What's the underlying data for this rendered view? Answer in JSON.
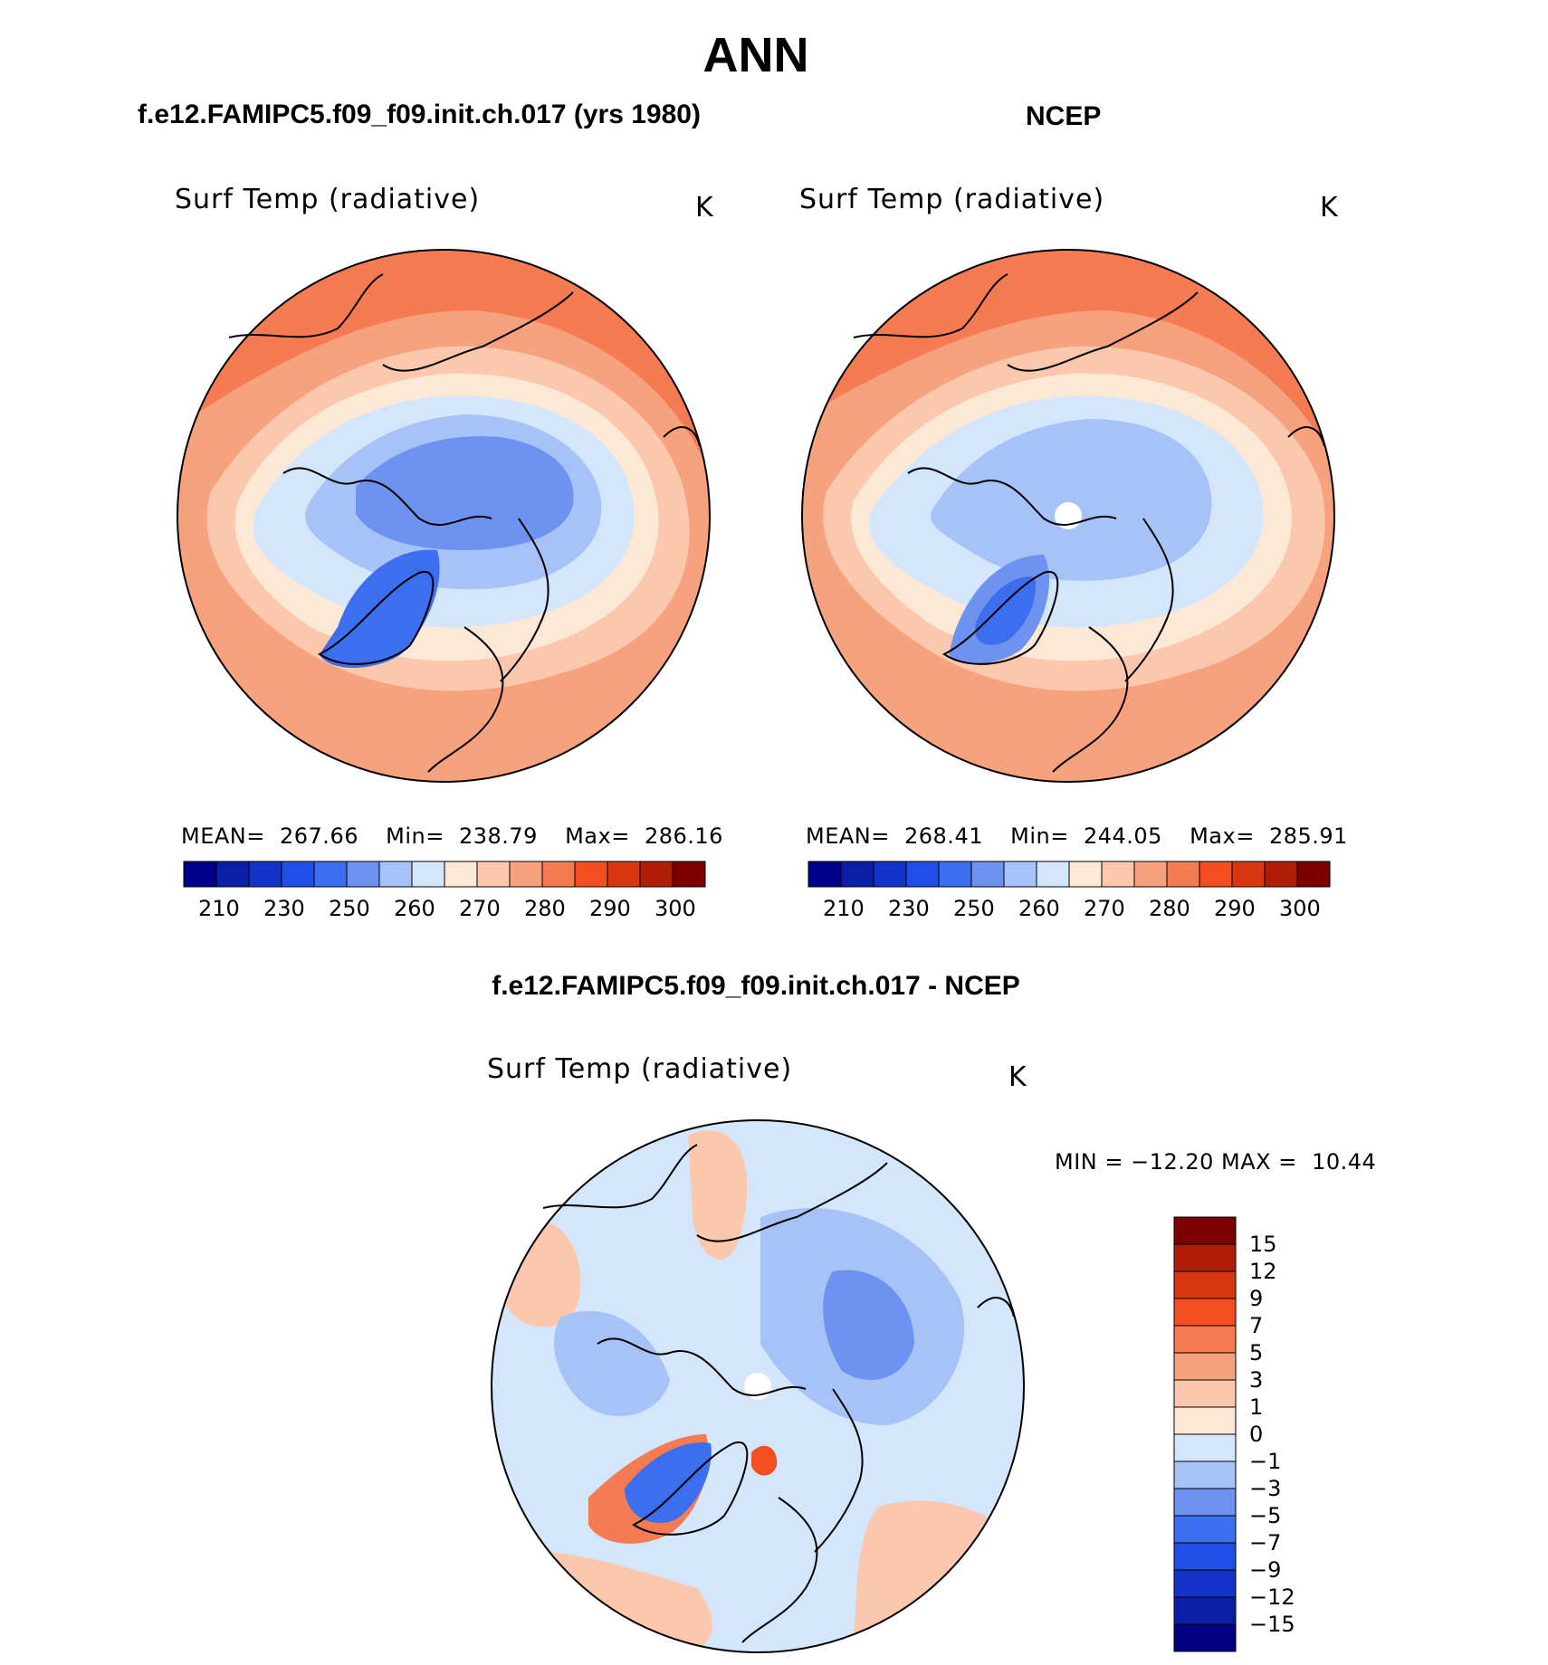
{
  "figure": {
    "title": "ANN",
    "panel_left_title": "f.e12.FAMIPC5.f09_f09.init.ch.017 (yrs 1980)",
    "panel_right_title": "NCEP",
    "diff_title": "f.e12.FAMIPC5.f09_f09.init.ch.017 - NCEP"
  },
  "panels": [
    {
      "variable": "Surf Temp (radiative)",
      "units": "K",
      "stats": {
        "mean_label": "MEAN=",
        "mean": "267.66",
        "min_label": "Min=",
        "min": "238.79",
        "max_label": "Max=",
        "max": "286.16"
      }
    },
    {
      "variable": "Surf Temp (radiative)",
      "units": "K",
      "stats": {
        "mean_label": "MEAN=",
        "mean": "268.41",
        "min_label": "Min=",
        "min": "244.05",
        "max_label": "Max=",
        "max": "285.91"
      }
    }
  ],
  "diff_panel": {
    "variable": "Surf Temp (radiative)",
    "units": "K",
    "minmax_text": "MIN = −12.20 MAX =  10.44"
  },
  "colorbar_abs": {
    "colors": [
      "#00008b",
      "#0a1ea8",
      "#1232c8",
      "#1f4fe6",
      "#3c6ef0",
      "#6e92f0",
      "#a6c2f7",
      "#d4e6fb",
      "#fde8d6",
      "#fbc8ad",
      "#f7a27e",
      "#f57b52",
      "#f24e22",
      "#d93612",
      "#b01e0a",
      "#7d0000"
    ],
    "tick_labels": [
      "210",
      "230",
      "250",
      "260",
      "270",
      "280",
      "290",
      "300"
    ]
  },
  "colorbar_diff": {
    "colors": [
      "#000080",
      "#0a1ea8",
      "#1232c8",
      "#1f4fe6",
      "#3c6ef0",
      "#6e92f0",
      "#a6c2f7",
      "#d4e6fb",
      "#fde8d6",
      "#fbc8ad",
      "#f7a27e",
      "#f57b52",
      "#f24e22",
      "#d93612",
      "#b01e0a",
      "#7d0000"
    ],
    "tick_labels": [
      "15",
      "12",
      "9",
      "7",
      "5",
      "3",
      "1",
      "0",
      "−1",
      "−3",
      "−5",
      "−7",
      "−9",
      "−12",
      "−15"
    ]
  }
}
